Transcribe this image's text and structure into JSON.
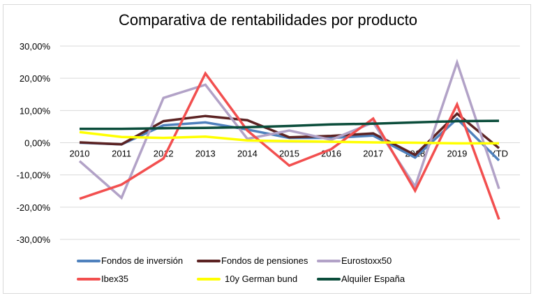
{
  "chart_data": {
    "type": "line",
    "title": "Comparativa de rentabilidades por producto",
    "xlabel": "",
    "ylabel": "",
    "ylim": [
      -30,
      30
    ],
    "yticks": [
      30,
      20,
      10,
      0,
      -10,
      -20,
      -30
    ],
    "ytick_labels": [
      "30,00%",
      "20,00%",
      "10,00%",
      "0,00%",
      "-10,00%",
      "-20,00%",
      "-30,00%"
    ],
    "grid": true,
    "legend_position": "bottom",
    "categories": [
      "2010",
      "2011",
      "2012",
      "2013",
      "2014",
      "2015",
      "2016",
      "2017",
      "2018",
      "2019",
      "YTD"
    ],
    "unit": "%",
    "series": [
      {
        "name": "Fondos de inversión",
        "color": "#4f81bd",
        "values": [
          0.0,
          -0.5,
          5.4,
          6.3,
          4.1,
          1.5,
          1.5,
          2.2,
          -4.6,
          7.4,
          -5.5
        ]
      },
      {
        "name": "Fondos de pensiones",
        "color": "#5c2323",
        "values": [
          0.1,
          -0.5,
          6.7,
          8.3,
          7.0,
          1.7,
          2.1,
          2.9,
          -3.8,
          9.0,
          -1.7
        ]
      },
      {
        "name": "Eurostoxx50",
        "color": "#b2a2c7",
        "values": [
          -5.7,
          -17.1,
          13.9,
          18.0,
          1.2,
          3.8,
          0.9,
          6.3,
          -13.6,
          24.9,
          -14.3
        ]
      },
      {
        "name": "Ibex35",
        "color": "#f24f4f",
        "values": [
          -17.4,
          -13.0,
          -4.9,
          21.5,
          3.8,
          -7.1,
          -2.0,
          7.5,
          -14.9,
          11.9,
          -23.8
        ]
      },
      {
        "name": "10y German bund",
        "color": "#ffff00",
        "values": [
          3.3,
          1.8,
          1.5,
          1.9,
          0.7,
          0.5,
          0.3,
          0.1,
          0.0,
          -0.2,
          -0.2
        ]
      },
      {
        "name": "Alquiler España",
        "color": "#0b4d3b",
        "values": [
          4.3,
          4.3,
          4.5,
          4.6,
          4.8,
          5.2,
          5.7,
          5.9,
          6.3,
          6.7,
          6.8
        ]
      }
    ]
  }
}
